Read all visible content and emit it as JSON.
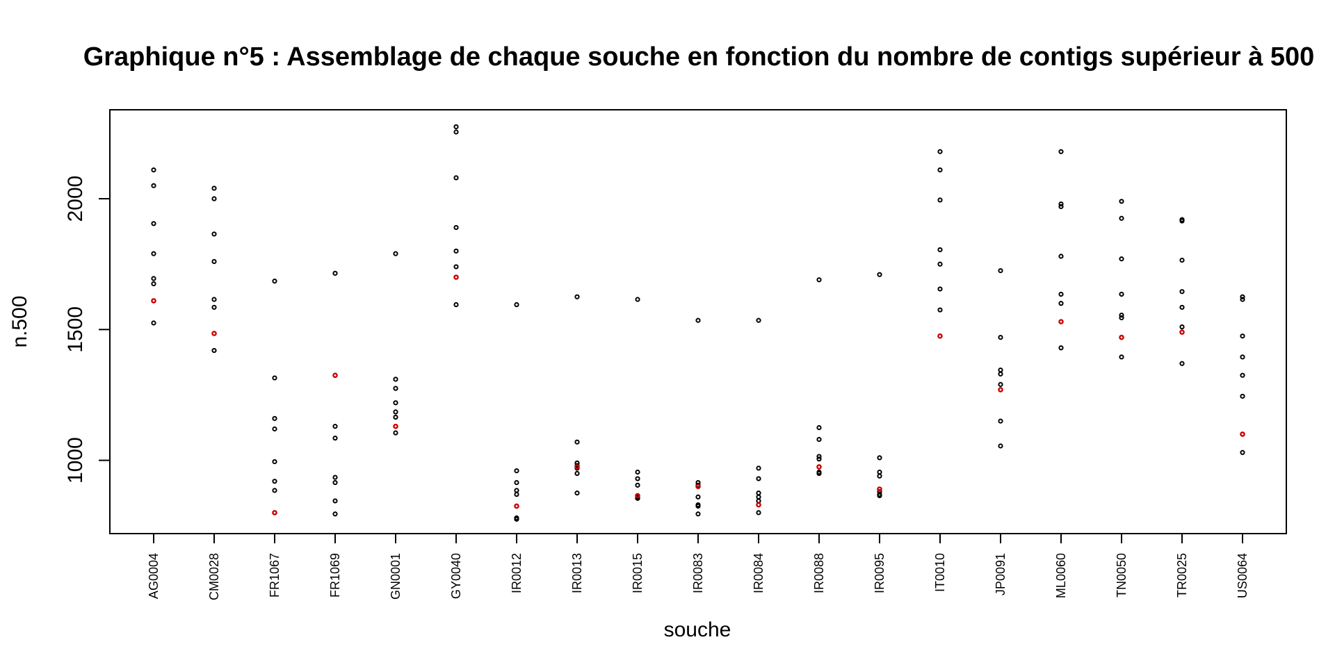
{
  "chart_data": {
    "type": "scatter",
    "title": "Graphique n°5 : Assemblage de chaque souche en fonction du nombre de contigs supérieur à 500",
    "xlabel": "souche",
    "ylabel": "n.500",
    "ylim": [
      720,
      2340
    ],
    "yticks": [
      1000,
      1500,
      2000
    ],
    "ytick_labels": [
      "1000",
      "1500",
      "2000"
    ],
    "grid": false,
    "legend": "none",
    "colors": {
      "regular": "#000000",
      "highlight": "#cc0000"
    },
    "categories": [
      "AG0004",
      "CM0028",
      "FR1067",
      "FR1069",
      "GN0001",
      "GY0040",
      "IR0012",
      "IR0013",
      "IR0015",
      "IR0083",
      "IR0084",
      "IR0088",
      "IR0095",
      "IT0010",
      "JP0091",
      "ML0060",
      "TN0050",
      "TR0025",
      "US0064"
    ],
    "series": [
      {
        "values": [
          [
            2110,
            2050,
            1905,
            1790,
            1695,
            1675,
            1525
          ],
          [
            2040,
            2000,
            1865,
            1760,
            1615,
            1585,
            1420
          ],
          [
            1685,
            1315,
            1160,
            1120,
            995,
            920,
            885
          ],
          [
            1715,
            1130,
            1085,
            935,
            915,
            845,
            795
          ],
          [
            1790,
            1310,
            1275,
            1220,
            1185,
            1165,
            1105
          ],
          [
            2275,
            2255,
            2080,
            1890,
            1800,
            1740,
            1595
          ],
          [
            1595,
            960,
            915,
            885,
            870,
            780,
            775
          ],
          [
            1625,
            1070,
            990,
            980,
            970,
            950,
            875
          ],
          [
            1615,
            955,
            930,
            905,
            860,
            855,
            855
          ],
          [
            1535,
            915,
            905,
            860,
            830,
            825,
            795
          ],
          [
            1535,
            970,
            930,
            875,
            860,
            845,
            800
          ],
          [
            1690,
            1125,
            1080,
            1015,
            1005,
            955,
            950
          ],
          [
            1710,
            1010,
            955,
            940,
            880,
            870,
            865
          ],
          [
            2180,
            2110,
            1995,
            1805,
            1750,
            1655,
            1575
          ],
          [
            1725,
            1470,
            1345,
            1330,
            1290,
            1150,
            1055
          ],
          [
            2180,
            1980,
            1970,
            1780,
            1635,
            1600,
            1430
          ],
          [
            1990,
            1925,
            1770,
            1635,
            1555,
            1545,
            1395
          ],
          [
            1920,
            1915,
            1765,
            1645,
            1585,
            1510,
            1370
          ],
          [
            1625,
            1615,
            1475,
            1395,
            1325,
            1245,
            1030
          ]
        ]
      },
      {
        "values": [
          1610,
          1485,
          800,
          1325,
          1130,
          1700,
          825,
          975,
          865,
          900,
          830,
          975,
          890,
          1475,
          1270,
          1530,
          1470,
          1490,
          1100
        ]
      }
    ]
  }
}
